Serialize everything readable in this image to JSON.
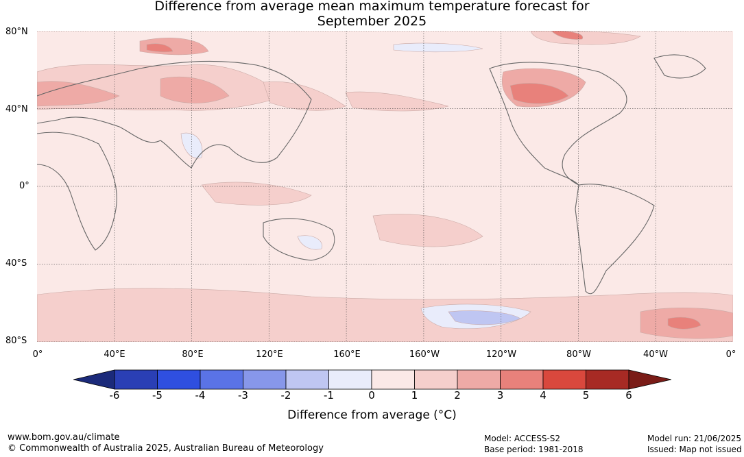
{
  "title_line1": "Difference from average mean maximum temperature forecast for",
  "title_line2": "September 2025",
  "lat_labels": [
    "80°N",
    "40°N",
    "0°",
    "40°S",
    "80°S"
  ],
  "lon_labels": [
    "0°",
    "40°E",
    "80°E",
    "120°E",
    "160°E",
    "160°W",
    "120°W",
    "80°W",
    "40°W",
    "0°"
  ],
  "colorbar": {
    "ticks": [
      "-6",
      "-5",
      "-4",
      "-3",
      "-2",
      "-1",
      "0",
      "1",
      "2",
      "3",
      "4",
      "5",
      "6"
    ],
    "colors": [
      "#1b2a7a",
      "#2a3fb5",
      "#2f4fe0",
      "#5a73e6",
      "#8797ea",
      "#bfc6f2",
      "#e9ecfb",
      "#fbe9e7",
      "#f5cfcc",
      "#eeaaa6",
      "#e8817b",
      "#d9483d",
      "#a72a24",
      "#7a1c17"
    ],
    "label": "Difference from average (°C)"
  },
  "footer": {
    "url": "www.bom.gov.au/climate",
    "copyright": "© Commonwealth of Australia 2025, Australian Bureau of Meteorology",
    "model": "Model: ACCESS-S2",
    "base_period": "Base period: 1981-2018",
    "model_run": "Model run: 21/06/2025",
    "issued": "Issued: Map not issued"
  }
}
